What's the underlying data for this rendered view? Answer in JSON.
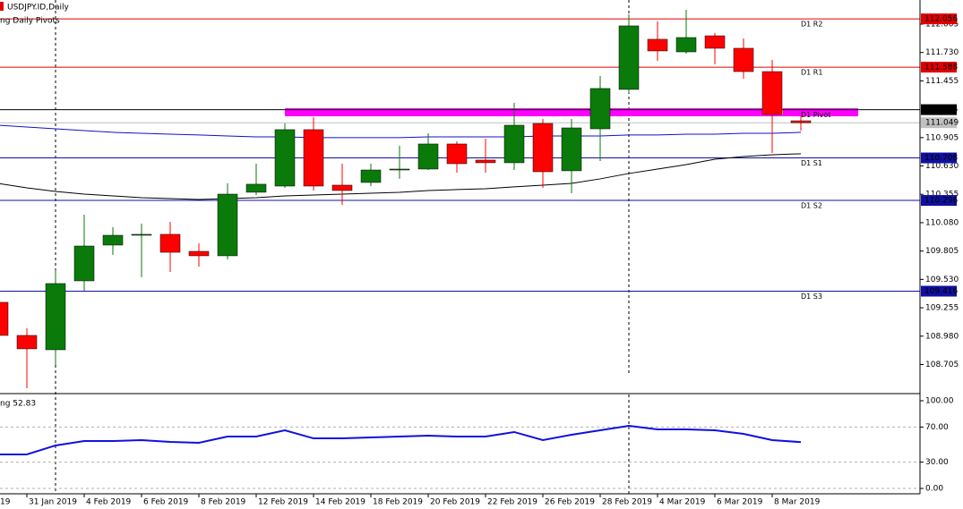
{
  "chart_data": [
    {
      "type": "candlestick",
      "title": "USDJPY.ID,Daily",
      "subtitle": "ng Daily Pivots",
      "categories": [
        "19",
        "31 Jan 2019",
        null,
        "4 Feb 2019",
        null,
        "6 Feb 2019",
        null,
        "8 Feb 2019",
        null,
        "12 Feb 2019",
        null,
        "14 Feb 2019",
        null,
        "18 Feb 2019",
        null,
        "20 Feb 2019",
        null,
        "22 Feb 2019",
        null,
        "26 Feb 2019",
        null,
        "28 Feb 2019",
        null,
        "4 Mar 2019",
        null,
        "6 Mar 2019",
        null,
        "8 Mar 2019",
        null
      ],
      "open": [
        109.308,
        108.987,
        108.848,
        109.516,
        109.863,
        109.958,
        109.967,
        109.802,
        109.759,
        110.375,
        110.435,
        110.982,
        110.444,
        110.47,
        110.591,
        110.6,
        110.843,
        110.687,
        110.661,
        111.042,
        110.583,
        110.99,
        111.372,
        111.858,
        111.736,
        111.892,
        111.771,
        111.545,
        111.068
      ],
      "high": [
        109.308,
        109.056,
        109.62,
        110.158,
        110.036,
        110.071,
        110.088,
        109.88,
        110.461,
        110.652,
        111.042,
        111.103,
        110.652,
        110.652,
        110.826,
        110.947,
        110.869,
        110.895,
        111.242,
        111.086,
        111.086,
        111.502,
        112.1,
        112.031,
        112.144,
        111.918,
        111.866,
        111.658,
        111.112
      ],
      "low": [
        108.987,
        108.475,
        108.701,
        109.42,
        109.767,
        109.551,
        109.603,
        109.655,
        109.724,
        110.348,
        110.418,
        110.392,
        110.253,
        110.435,
        110.505,
        110.591,
        110.565,
        110.565,
        110.591,
        110.418,
        110.366,
        110.678,
        111.337,
        111.649,
        111.719,
        111.615,
        111.476,
        110.756,
        110.973
      ],
      "close": [
        108.987,
        108.857,
        109.49,
        109.854,
        109.958,
        109.967,
        109.793,
        109.759,
        110.357,
        110.453,
        110.982,
        110.435,
        110.392,
        110.591,
        110.6,
        110.843,
        110.652,
        110.661,
        111.025,
        110.574,
        110.999,
        111.381,
        111.988,
        111.745,
        111.875,
        111.771,
        111.545,
        111.129,
        111.049
      ],
      "up_color": "#0a7a0a",
      "down_color": "#ff0000",
      "series": [
        {
          "color": "#1010c8",
          "values": [
            111.025,
            111.008,
            110.99,
            110.973,
            110.956,
            110.947,
            110.938,
            110.93,
            110.921,
            110.912,
            110.912,
            110.904,
            110.904,
            110.904,
            110.904,
            110.912,
            110.912,
            110.912,
            110.912,
            110.921,
            110.921,
            110.921,
            110.93,
            110.93,
            110.938,
            110.938,
            110.947,
            110.947,
            110.956
          ]
        },
        {
          "color": "#000000",
          "values": [
            110.461,
            110.418,
            110.383,
            110.357,
            110.34,
            110.322,
            110.314,
            110.305,
            110.314,
            110.322,
            110.34,
            110.348,
            110.357,
            110.366,
            110.374,
            110.392,
            110.401,
            110.409,
            110.427,
            110.444,
            110.461,
            110.505,
            110.557,
            110.6,
            110.643,
            110.695,
            110.721,
            110.739,
            110.748
          ]
        }
      ],
      "pivots": [
        {
          "label": "D1 R2",
          "value": 112.056,
          "color": "#e00000"
        },
        {
          "label": "D1 R1",
          "value": 111.588,
          "color": "#e00000"
        },
        {
          "label": "D1 Pivot",
          "value": 111.176,
          "color": "#000000"
        },
        {
          "label": "D1 S1",
          "value": 110.708,
          "color": "#1010a0"
        },
        {
          "label": "D1 S2",
          "value": 110.296,
          "color": "#1010a0"
        },
        {
          "label": "D1 S3",
          "value": 109.416,
          "color": "#1010a0"
        }
      ],
      "current_price": 111.049,
      "ylim": [
        108.423,
        112.239
      ],
      "yticks": [
        112.005,
        {
          "value": 111.73,
          "label": "111.730"
        },
        111.455,
        110.905,
        {
          "value": 110.63,
          "label": "110.630"
        },
        110.355,
        {
          "value": 110.08,
          "label": "110.080"
        },
        109.805,
        {
          "value": 109.53,
          "label": "109.530"
        },
        109.255,
        {
          "value": 108.98,
          "label": "108.980"
        },
        108.705
      ]
    },
    {
      "type": "line",
      "title": "ng 52.83",
      "color": "#1010e0",
      "values": [
        38.8,
        38.8,
        49.0,
        54.1,
        54.1,
        55.1,
        53.1,
        52.0,
        59.2,
        59.2,
        66.3,
        57.1,
        57.1,
        58.2,
        59.2,
        60.2,
        59.2,
        59.2,
        64.3,
        55.1,
        61.2,
        66.3,
        71.4,
        67.3,
        67.3,
        66.3,
        62.2,
        55.1,
        52.83
      ],
      "ylim": [
        -6.1,
        107.1
      ],
      "yticks": [
        {
          "value": 100,
          "label": "100.00"
        },
        {
          "value": 70,
          "label": "70.00"
        },
        {
          "value": 30,
          "label": "30.00"
        },
        {
          "value": 0,
          "label": "0.00"
        }
      ],
      "grid": true
    }
  ]
}
